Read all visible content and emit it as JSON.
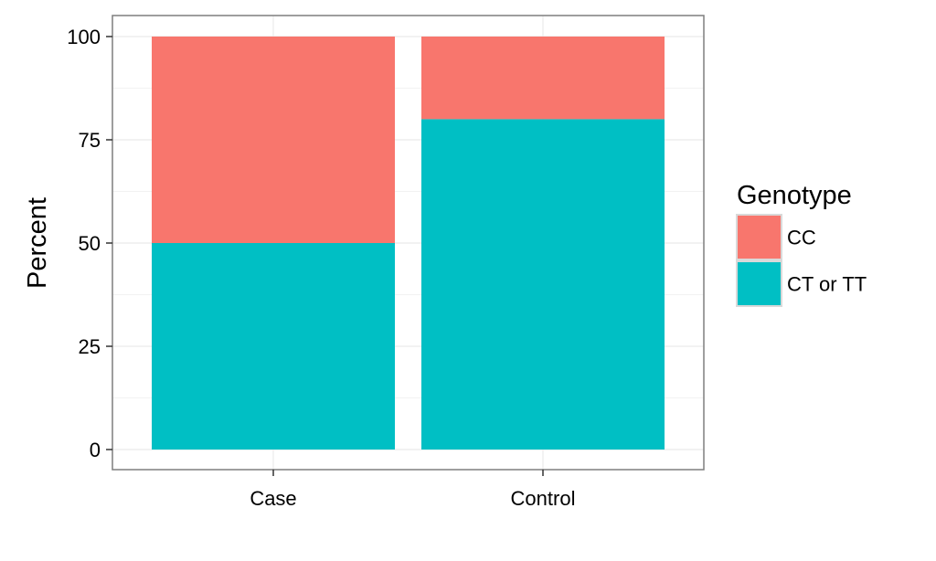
{
  "chart_data": {
    "type": "bar",
    "stacked": true,
    "categories": [
      "Case",
      "Control"
    ],
    "series": [
      {
        "name": "CT or TT",
        "values": [
          50,
          80
        ],
        "color": "#00BFC4"
      },
      {
        "name": "CC",
        "values": [
          50,
          20
        ],
        "color": "#F8766D"
      }
    ],
    "title": "",
    "xlabel": "",
    "ylabel": "Percent",
    "ylim": [
      0,
      100
    ],
    "yticks": [
      0,
      25,
      50,
      75,
      100
    ],
    "grid": true,
    "legend": {
      "title": "Genotype",
      "position": "right",
      "entries": [
        "CC",
        "CT or TT"
      ]
    }
  }
}
